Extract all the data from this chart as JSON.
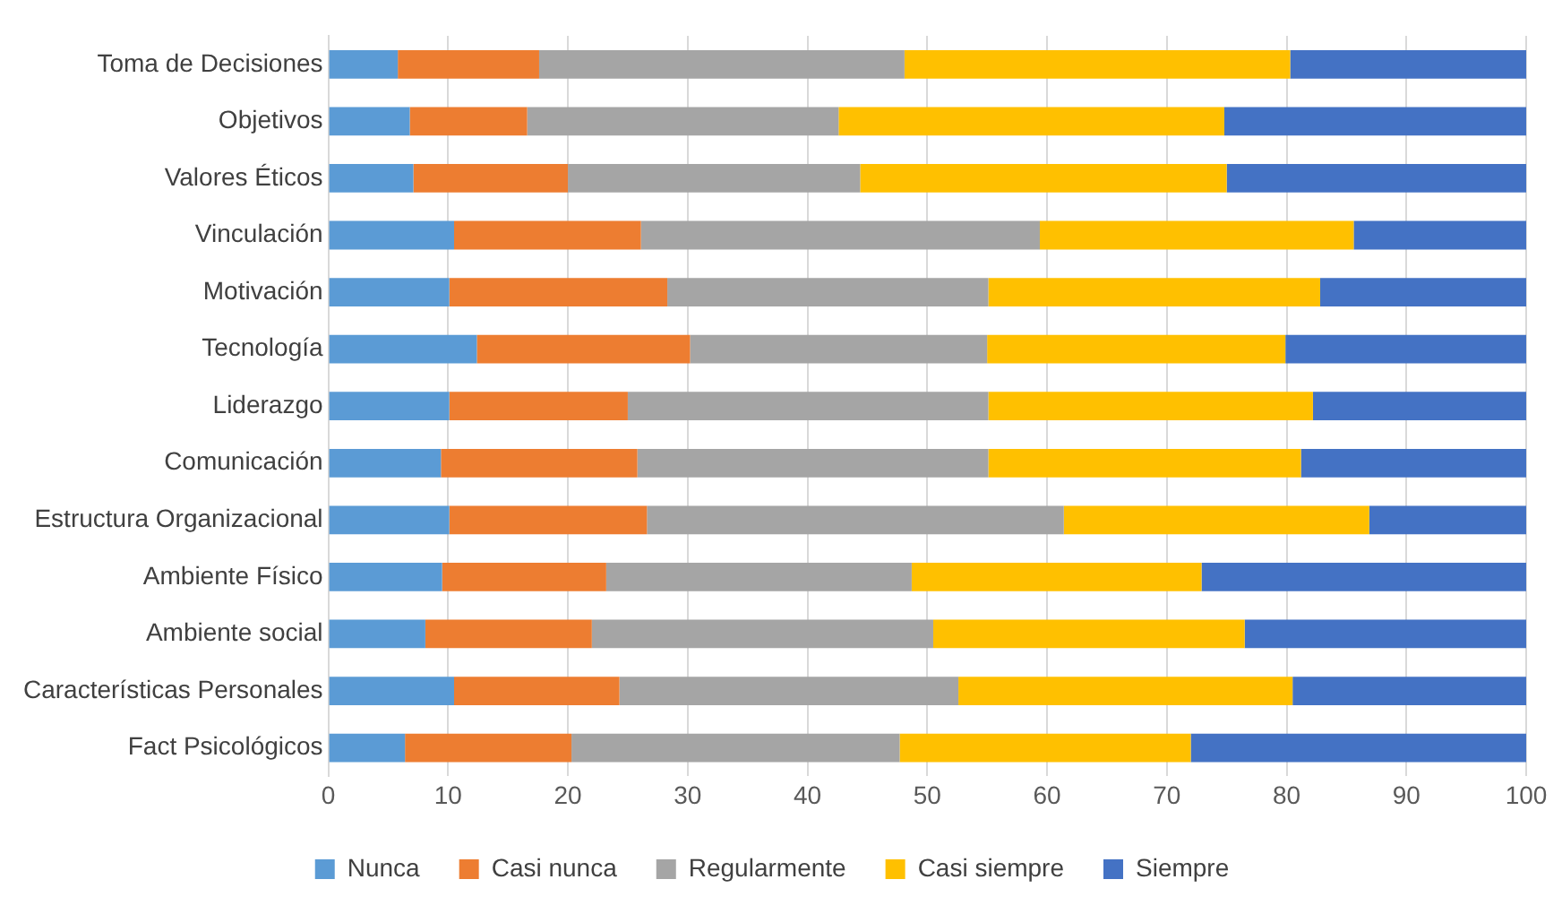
{
  "chart_data": {
    "type": "bar",
    "orientation": "horizontal",
    "stacked": true,
    "categories": [
      "Toma de Decisiones",
      "Objetivos",
      "Valores Éticos",
      "Vinculación",
      "Motivación",
      "Tecnología",
      "Liderazgo",
      "Comunicación",
      "Estructura Organizacional",
      "Ambiente Físico",
      "Ambiente social",
      "Características Personales",
      "Fact Psicológicos"
    ],
    "series": [
      {
        "name": "Nunca",
        "color": "#5b9bd5",
        "values": [
          5.8,
          6.8,
          7.1,
          10.5,
          10.1,
          12.4,
          10.1,
          9.4,
          10.1,
          9.5,
          8.1,
          10.5,
          6.4
        ]
      },
      {
        "name": "Casi nunca",
        "color": "#ed7d31",
        "values": [
          11.8,
          9.8,
          12.9,
          15.6,
          18.2,
          17.8,
          14.9,
          16.4,
          16.5,
          13.7,
          13.9,
          13.8,
          13.9
        ]
      },
      {
        "name": "Regularmente",
        "color": "#a5a5a5",
        "values": [
          30.5,
          26.0,
          24.4,
          33.3,
          26.8,
          24.8,
          30.1,
          29.3,
          34.8,
          25.5,
          28.5,
          28.3,
          27.4
        ]
      },
      {
        "name": "Casi siempre",
        "color": "#ffc000",
        "values": [
          32.2,
          32.2,
          30.6,
          26.2,
          27.7,
          24.9,
          27.1,
          26.1,
          25.5,
          24.2,
          26.0,
          27.9,
          24.3
        ]
      },
      {
        "name": "Siempre",
        "color": "#4472c4",
        "values": [
          19.7,
          25.2,
          25.0,
          14.4,
          17.2,
          20.1,
          17.8,
          18.8,
          13.1,
          27.1,
          23.5,
          19.5,
          28.0
        ]
      }
    ],
    "xlim": [
      0,
      100
    ],
    "xticks": [
      0,
      10,
      20,
      30,
      40,
      50,
      60,
      70,
      80,
      90,
      100
    ],
    "grid": "x",
    "legend": "bottom"
  }
}
